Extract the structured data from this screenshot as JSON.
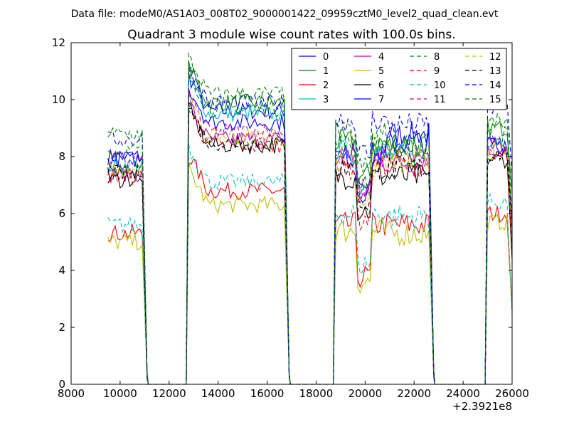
{
  "header": {
    "data_file": "Data file: modeM0/AS1A03_008T02_9000001422_09959cztM0_level2_quad_clean.evt"
  },
  "chart_data": {
    "type": "line",
    "title": "Quadrant 3 module wise count rates with 100.0s bins.",
    "xlabel": "",
    "ylabel": "",
    "x_offset_label": "+2.3921e8",
    "xlim": [
      8000,
      26000
    ],
    "ylim": [
      0,
      12
    ],
    "xticks": [
      8000,
      10000,
      12000,
      14000,
      16000,
      18000,
      20000,
      22000,
      24000,
      26000
    ],
    "yticks": [
      0,
      2,
      4,
      6,
      8,
      10,
      12
    ],
    "grid": false,
    "legend": {
      "placement": "top-right",
      "columns": 4
    },
    "x_range": [
      9500,
      26000
    ],
    "bin_width": 100,
    "off_intervals": [
      [
        11100,
        12700
      ],
      [
        16900,
        18700
      ],
      [
        22800,
        24900
      ]
    ],
    "series": [
      {
        "name": "0",
        "color": "#0000ff",
        "dash": "solid",
        "levels": [
          8.0,
          9.6,
          8.1,
          8.8,
          8.4
        ]
      },
      {
        "name": "1",
        "color": "#008000",
        "dash": "solid",
        "levels": [
          7.5,
          9.9,
          8.5,
          8.4,
          9.0
        ]
      },
      {
        "name": "2",
        "color": "#ff0000",
        "dash": "solid",
        "levels": [
          5.3,
          6.8,
          5.6,
          5.6,
          6.0
        ]
      },
      {
        "name": "3",
        "color": "#00bfbf",
        "dash": "solid",
        "levels": [
          7.7,
          9.5,
          8.2,
          8.0,
          8.6
        ]
      },
      {
        "name": "4",
        "color": "#bf00bf",
        "dash": "solid",
        "levels": [
          7.4,
          8.6,
          7.8,
          7.8,
          8.2
        ]
      },
      {
        "name": "5",
        "color": "#bfbf00",
        "dash": "solid",
        "levels": [
          5.0,
          6.3,
          5.4,
          5.3,
          5.7
        ]
      },
      {
        "name": "6",
        "color": "#000000",
        "dash": "solid",
        "levels": [
          7.2,
          8.4,
          7.3,
          7.3,
          7.9
        ]
      },
      {
        "name": "7",
        "color": "#0000ff",
        "dash": "solid",
        "levels": [
          7.9,
          9.2,
          8.0,
          8.5,
          8.5
        ]
      },
      {
        "name": "8",
        "color": "#008000",
        "dash": "dashed",
        "levels": [
          8.2,
          9.7,
          8.4,
          8.2,
          8.8
        ]
      },
      {
        "name": "9",
        "color": "#ff0000",
        "dash": "dashed",
        "levels": [
          7.3,
          8.4,
          7.6,
          7.7,
          8.0
        ]
      },
      {
        "name": "10",
        "color": "#00bfbf",
        "dash": "dashed",
        "levels": [
          5.6,
          7.1,
          6.0,
          5.9,
          6.4
        ]
      },
      {
        "name": "11",
        "color": "#bf00bf",
        "dash": "dashed",
        "levels": [
          7.9,
          8.9,
          8.0,
          8.0,
          8.4
        ]
      },
      {
        "name": "12",
        "color": "#bfbf00",
        "dash": "dashed",
        "levels": [
          7.6,
          8.7,
          7.8,
          7.8,
          8.2
        ]
      },
      {
        "name": "13",
        "color": "#000000",
        "dash": "dashed",
        "levels": [
          7.4,
          8.5,
          7.6,
          7.6,
          8.1
        ]
      },
      {
        "name": "14",
        "color": "#0000ff",
        "dash": "dashed",
        "levels": [
          8.6,
          9.9,
          9.3,
          9.1,
          9.7
        ]
      },
      {
        "name": "15",
        "color": "#008000",
        "dash": "dashed",
        "levels": [
          8.8,
          10.2,
          8.8,
          8.4,
          9.2
        ]
      }
    ]
  }
}
